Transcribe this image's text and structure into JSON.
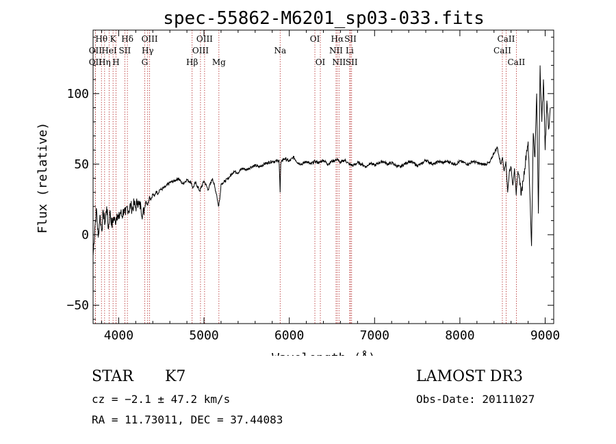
{
  "chart_data": {
    "type": "line",
    "title": "spec-55862-M6201_sp03-033.fits",
    "xlabel": "Wavelength (Å)",
    "ylabel": "Flux (relative)",
    "xlim": [
      3700,
      9100
    ],
    "ylim": [
      -63,
      145
    ],
    "xticks": [
      4000,
      5000,
      6000,
      7000,
      8000,
      9000
    ],
    "yticks": [
      -50,
      0,
      50,
      100
    ],
    "series": [
      {
        "name": "flux",
        "x": [
          3700,
          3720,
          3740,
          3760,
          3780,
          3800,
          3820,
          3840,
          3860,
          3880,
          3900,
          3920,
          3940,
          3960,
          3980,
          4000,
          4020,
          4040,
          4060,
          4080,
          4100,
          4120,
          4140,
          4160,
          4180,
          4200,
          4220,
          4240,
          4260,
          4280,
          4300,
          4320,
          4340,
          4360,
          4380,
          4400,
          4420,
          4440,
          4460,
          4480,
          4500,
          4550,
          4600,
          4650,
          4700,
          4750,
          4800,
          4850,
          4870,
          4900,
          4950,
          5000,
          5050,
          5100,
          5150,
          5170,
          5185,
          5200,
          5250,
          5300,
          5350,
          5400,
          5450,
          5500,
          5550,
          5600,
          5650,
          5700,
          5750,
          5800,
          5850,
          5880,
          5893,
          5900,
          5920,
          5950,
          6000,
          6050,
          6100,
          6150,
          6200,
          6250,
          6300,
          6350,
          6400,
          6450,
          6500,
          6550,
          6563,
          6580,
          6600,
          6650,
          6700,
          6750,
          6800,
          6850,
          6900,
          6950,
          7000,
          7050,
          7100,
          7150,
          7200,
          7250,
          7300,
          7350,
          7400,
          7450,
          7500,
          7550,
          7600,
          7650,
          7700,
          7750,
          7800,
          7850,
          7900,
          7950,
          8000,
          8050,
          8100,
          8150,
          8200,
          8250,
          8300,
          8350,
          8400,
          8440,
          8460,
          8480,
          8500,
          8520,
          8540,
          8560,
          8580,
          8600,
          8620,
          8640,
          8660,
          8680,
          8700,
          8720,
          8740,
          8760,
          8780,
          8800,
          8820,
          8840,
          8860,
          8880,
          8900,
          8920,
          8940,
          8960,
          8980,
          9000,
          9020,
          9040,
          9060
        ],
        "values": [
          -15,
          5,
          18,
          -2,
          14,
          3,
          16,
          8,
          20,
          4,
          17,
          6,
          12,
          9,
          15,
          11,
          16,
          13,
          18,
          14,
          20,
          17,
          21,
          18,
          22,
          19,
          24,
          21,
          20,
          14,
          18,
          24,
          21,
          27,
          25,
          29,
          27,
          31,
          29,
          32,
          32,
          34,
          37,
          38,
          40,
          36,
          39,
          37,
          33,
          37,
          31,
          38,
          32,
          40,
          28,
          20,
          25,
          36,
          38,
          41,
          45,
          44,
          47,
          46,
          48,
          49,
          48,
          50,
          51,
          52,
          52,
          53,
          30,
          50,
          53,
          54,
          52,
          55,
          51,
          50,
          52,
          50,
          52,
          51,
          53,
          50,
          52,
          53,
          54,
          52,
          51,
          53,
          50,
          49,
          51,
          50,
          48,
          51,
          49,
          51,
          52,
          50,
          51,
          49,
          48,
          50,
          52,
          51,
          49,
          50,
          53,
          51,
          50,
          52,
          51,
          52,
          51,
          50,
          52,
          51,
          50,
          52,
          51,
          50,
          50,
          51,
          58,
          62,
          55,
          50,
          55,
          45,
          52,
          30,
          45,
          48,
          35,
          47,
          28,
          45,
          40,
          28,
          38,
          47,
          58,
          66,
          30,
          -8,
          72,
          55,
          100,
          15,
          120,
          80,
          110,
          60,
          95,
          75,
          90
        ]
      }
    ],
    "lines": [
      {
        "name": "Hθ",
        "wl": 3798,
        "row": 1
      },
      {
        "name": "OII",
        "wl": 3727,
        "row": 2
      },
      {
        "name": "OII",
        "wl": 3727,
        "row": 3
      },
      {
        "name": "Hη",
        "wl": 3835,
        "row": 3
      },
      {
        "name": "HeI",
        "wl": 3889,
        "row": 2
      },
      {
        "name": "K",
        "wl": 3934,
        "row": 1
      },
      {
        "name": "SII",
        "wl": 4072,
        "row": 2
      },
      {
        "name": "H",
        "wl": 3969,
        "row": 3
      },
      {
        "name": "Hδ",
        "wl": 4102,
        "row": 1
      },
      {
        "name": "OIII",
        "wl": 4363,
        "row": 1
      },
      {
        "name": "Hγ",
        "wl": 4340,
        "row": 2
      },
      {
        "name": "G",
        "wl": 4305,
        "row": 3
      },
      {
        "name": "OIII",
        "wl": 5007,
        "row": 1
      },
      {
        "name": "OIII",
        "wl": 4959,
        "row": 2
      },
      {
        "name": "Hβ",
        "wl": 4861,
        "row": 3
      },
      {
        "name": "Mg",
        "wl": 5175,
        "row": 3
      },
      {
        "name": "Na",
        "wl": 5893,
        "row": 2
      },
      {
        "name": "OI",
        "wl": 6300,
        "row": 1
      },
      {
        "name": "OI",
        "wl": 6364,
        "row": 3
      },
      {
        "name": "Hα",
        "wl": 6563,
        "row": 1
      },
      {
        "name": "SII",
        "wl": 6717,
        "row": 1
      },
      {
        "name": "NII",
        "wl": 6548,
        "row": 2
      },
      {
        "name": "Li",
        "wl": 6708,
        "row": 2
      },
      {
        "name": "NII",
        "wl": 6583,
        "row": 3
      },
      {
        "name": "SII",
        "wl": 6731,
        "row": 3
      },
      {
        "name": "CaII",
        "wl": 8542,
        "row": 1
      },
      {
        "name": "CaII",
        "wl": 8498,
        "row": 2
      },
      {
        "name": "CaII",
        "wl": 8662,
        "row": 3
      }
    ]
  },
  "info": {
    "class": "STAR",
    "subclass": "K7",
    "survey": "LAMOST DR3",
    "cz": "cz = −2.1 ± 47.2 km/s",
    "obsdate": "Obs-Date: 20111027",
    "radec": "RA =  11.73011, DEC =  37.44083"
  }
}
